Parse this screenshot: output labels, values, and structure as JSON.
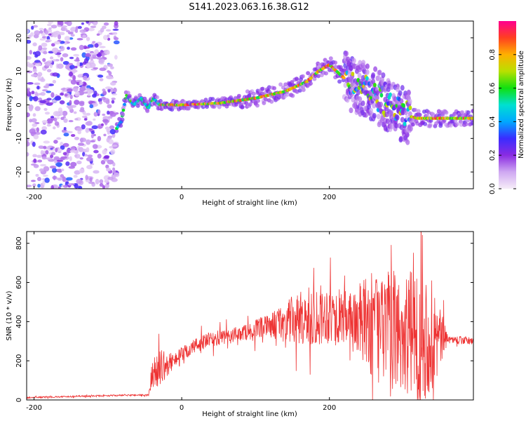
{
  "title": "S141.2023.063.16.38.G12",
  "chart_data": [
    {
      "type": "heatmap",
      "xlabel": "Height of straight line (km)",
      "ylabel": "Frequency (Hz)",
      "xlim": [
        -210,
        395
      ],
      "ylim": [
        -25,
        25
      ],
      "xticks": [
        -200,
        0,
        200
      ],
      "yticks": [
        -20,
        -10,
        0,
        10,
        20
      ],
      "colorbar": {
        "label": "Normalized spectral amplitude",
        "range": [
          0,
          1
        ],
        "ticks": [
          "0.0",
          "0.2",
          "0.4",
          "0.6",
          "0.8"
        ],
        "colors": [
          "#f6edf8",
          "#cfa8f2",
          "#8a2be2",
          "#3a2cff",
          "#00a8ff",
          "#00e0d0",
          "#10e010",
          "#b8e000",
          "#ffb000",
          "#ff4020",
          "#ff0090"
        ]
      },
      "noise_region": {
        "x": [
          -210,
          -88
        ],
        "y": [
          -25,
          25
        ]
      },
      "ridge": [
        {
          "x": -88,
          "y": -7
        },
        {
          "x": -82,
          "y": -5
        },
        {
          "x": -75,
          "y": 3
        },
        {
          "x": -65,
          "y": 0
        },
        {
          "x": -55,
          "y": 2
        },
        {
          "x": -45,
          "y": -1
        },
        {
          "x": -38,
          "y": 2
        },
        {
          "x": -30,
          "y": 0
        },
        {
          "x": 0,
          "y": 0
        },
        {
          "x": 50,
          "y": 0.5
        },
        {
          "x": 100,
          "y": 2
        },
        {
          "x": 140,
          "y": 4
        },
        {
          "x": 170,
          "y": 7
        },
        {
          "x": 185,
          "y": 10
        },
        {
          "x": 200,
          "y": 12
        },
        {
          "x": 210,
          "y": 10
        },
        {
          "x": 230,
          "y": 6
        },
        {
          "x": 255,
          "y": 4
        },
        {
          "x": 280,
          "y": 0
        },
        {
          "x": 300,
          "y": -3
        },
        {
          "x": 320,
          "y": -4
        },
        {
          "x": 395,
          "y": -4
        }
      ]
    },
    {
      "type": "line",
      "xlabel": "Height of straight line (km)",
      "ylabel": "SNR (10 * v/v)",
      "xlim": [
        -210,
        395
      ],
      "ylim": [
        0,
        860
      ],
      "xticks": [
        -200,
        0,
        200
      ],
      "yticks": [
        0,
        200,
        400,
        600,
        800
      ],
      "color": "#ee3333",
      "series": [
        {
          "x": [
            -210,
            -150,
            -100,
            -60,
            -45,
            -40,
            -30,
            -20,
            -10,
            0,
            20,
            40,
            60,
            80,
            100,
            120,
            140,
            160,
            180,
            200,
            220,
            240,
            260,
            280,
            300,
            320,
            340,
            360,
            395
          ],
          "y": [
            12,
            18,
            22,
            25,
            25,
            120,
            180,
            170,
            210,
            230,
            280,
            310,
            320,
            340,
            360,
            380,
            400,
            410,
            430,
            440,
            420,
            400,
            380,
            360,
            340,
            330,
            320,
            310,
            300
          ],
          "spread": [
            4,
            4,
            4,
            4,
            4,
            80,
            100,
            60,
            40,
            40,
            40,
            40,
            40,
            40,
            50,
            60,
            110,
            140,
            160,
            150,
            140,
            200,
            280,
            300,
            320,
            340,
            300,
            20,
            20
          ]
        }
      ]
    }
  ]
}
